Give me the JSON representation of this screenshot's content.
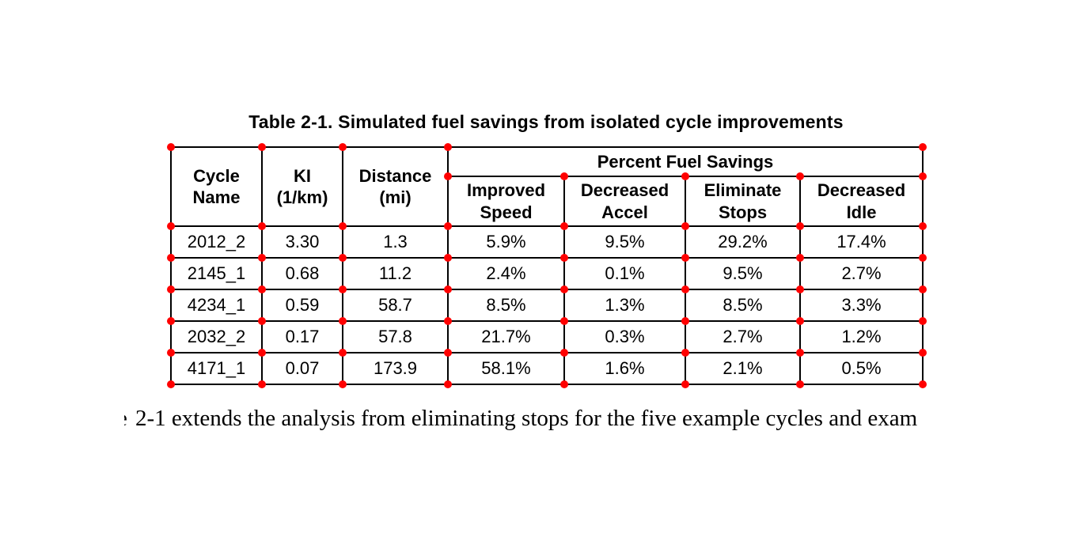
{
  "table": {
    "title": "Table 2-1. Simulated fuel savings from isolated cycle improvements",
    "group_header": "Percent Fuel Savings",
    "columns": [
      "Cycle\nName",
      "KI\n(1/km)",
      "Distance\n(mi)",
      "Improved\nSpeed",
      "Decreased\nAccel",
      "Eliminate\nStops",
      "Decreased\nIdle"
    ],
    "rows": [
      [
        "2012_2",
        "3.30",
        "1.3",
        "5.9%",
        "9.5%",
        "29.2%",
        "17.4%"
      ],
      [
        "2145_1",
        "0.68",
        "11.2",
        "2.4%",
        "0.1%",
        "9.5%",
        "2.7%"
      ],
      [
        "4234_1",
        "0.59",
        "58.7",
        "8.5%",
        "1.3%",
        "8.5%",
        "3.3%"
      ],
      [
        "2032_2",
        "0.17",
        "57.8",
        "21.7%",
        "0.3%",
        "2.7%",
        "1.2%"
      ],
      [
        "4171_1",
        "0.07",
        "173.9",
        "58.1%",
        "1.6%",
        "2.1%",
        "0.5%"
      ]
    ],
    "marker_color": "#ff0000"
  },
  "body": {
    "clipped_fragment": "e",
    "text": "2-1 extends the analysis from eliminating stops for the five example cycles and exam"
  }
}
